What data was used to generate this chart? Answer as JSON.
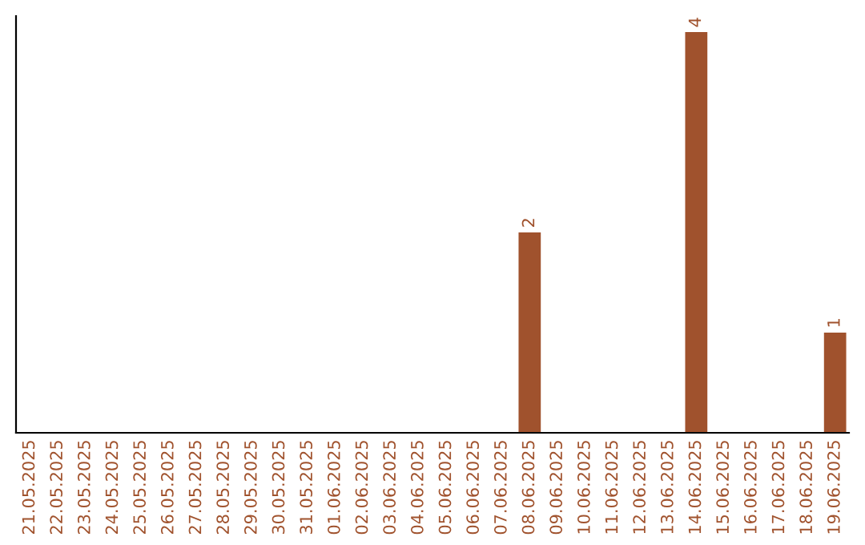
{
  "chart_data": {
    "type": "bar",
    "categories": [
      "21.05.2025",
      "22.05.2025",
      "23.05.2025",
      "24.05.2025",
      "25.05.2025",
      "26.05.2025",
      "27.05.2025",
      "28.05.2025",
      "29.05.2025",
      "30.05.2025",
      "31.05.2025",
      "01.06.2025",
      "02.06.2025",
      "03.06.2025",
      "04.06.2025",
      "05.06.2025",
      "06.06.2025",
      "07.06.2025",
      "08.06.2025",
      "09.06.2025",
      "10.06.2025",
      "11.06.2025",
      "12.06.2025",
      "13.06.2025",
      "14.06.2025",
      "15.06.2025",
      "16.06.2025",
      "17.06.2025",
      "18.06.2025",
      "19.06.2025"
    ],
    "values": [
      null,
      null,
      null,
      null,
      null,
      null,
      null,
      null,
      null,
      null,
      null,
      null,
      null,
      null,
      null,
      null,
      null,
      null,
      2,
      null,
      null,
      null,
      null,
      null,
      4,
      null,
      null,
      null,
      null,
      1
    ],
    "data_labels": true,
    "color": "#a0522d",
    "relative": false,
    "grid": false,
    "legend": false
  }
}
